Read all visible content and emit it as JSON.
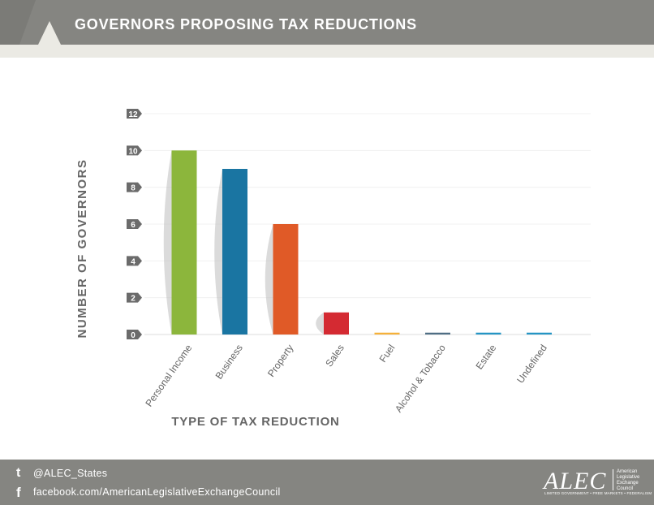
{
  "header": {
    "title": "GOVERNORS PROPOSING TAX REDUCTIONS"
  },
  "footer": {
    "twitter": "@ALEC_States",
    "facebook": "facebook.com/AmericanLegislativeExchangeCouncil",
    "twitter_icon": "twitter-icon",
    "facebook_icon": "facebook-icon",
    "logo": {
      "wordmark": "ALEC",
      "name_lines": [
        "American",
        "Legislative",
        "Exchange",
        "Council"
      ],
      "tagline": "LIMITED GOVERNMENT • FREE MARKETS • FEDERALISM"
    }
  },
  "colors": {
    "header": "#858581",
    "strip": "#ebeae4",
    "axis_text": "#666666",
    "tick_badge": "#6b6b6b"
  },
  "chart_data": {
    "type": "bar",
    "title": "GOVERNORS PROPOSING TAX REDUCTIONS",
    "xlabel": "TYPE OF TAX REDUCTION",
    "ylabel": "NUMBER OF GOVERNORS",
    "ylim": [
      0,
      12
    ],
    "yticks": [
      0,
      2,
      4,
      6,
      8,
      10,
      12
    ],
    "grid": true,
    "categories": [
      "Personal Income",
      "Business",
      "Property",
      "Sales",
      "Fuel",
      "Alcohol & Tobacco",
      "Estate",
      "Undefined"
    ],
    "values": [
      10,
      9,
      6,
      1.2,
      0.1,
      0.1,
      0.1,
      0.1
    ],
    "colors": [
      "#8cb63c",
      "#1a75a2",
      "#e05a27",
      "#d42a32",
      "#f5b13a",
      "#4f6e84",
      "#2595c4",
      "#2595c4"
    ]
  }
}
